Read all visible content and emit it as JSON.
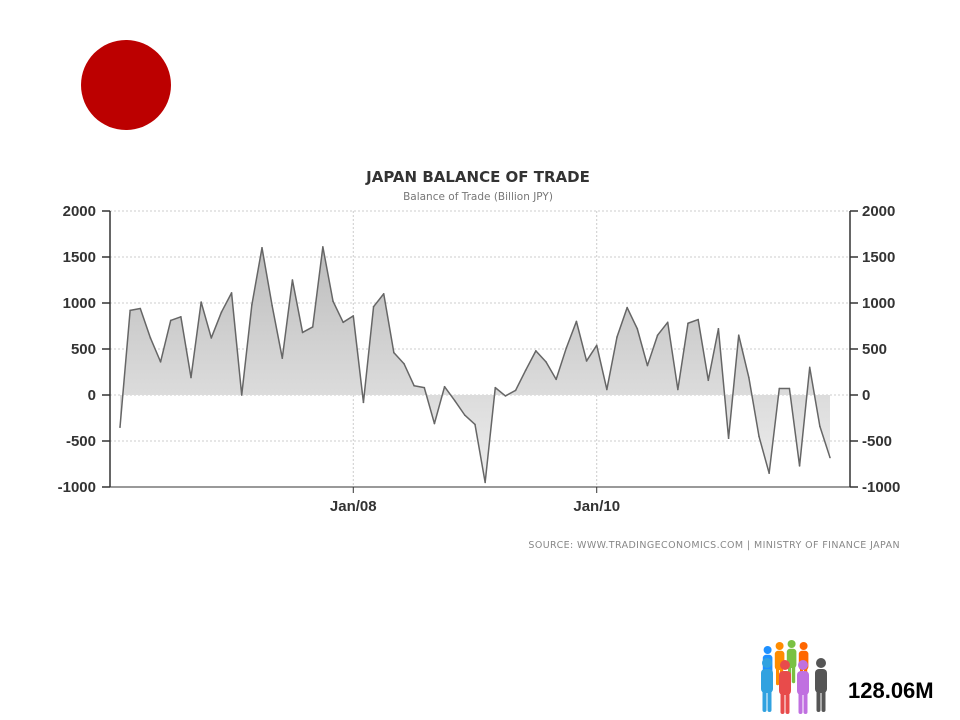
{
  "flag": {
    "color": "#bc0000"
  },
  "population": {
    "value": "128.06M",
    "icon": "people-group-icon",
    "figure_colors": [
      "#1e90ff",
      "#ff8c00",
      "#7ac142",
      "#ff6600",
      "#31a2e0",
      "#e84b4b",
      "#c070e0",
      "#555555"
    ]
  },
  "chart_data": {
    "type": "area",
    "title": "JAPAN BALANCE OF TRADE",
    "subtitle": "Balance of Trade (Billion JPY)",
    "source": "SOURCE: WWW.TRADINGECONOMICS.COM | MINISTRY OF FINANCE JAPAN",
    "ylim": [
      -1000,
      2000
    ],
    "y_ticks": [
      "2000",
      "1500",
      "1000",
      "500",
      "0",
      "-500",
      "-1000"
    ],
    "y_tick_values": [
      2000,
      1500,
      1000,
      500,
      0,
      -500,
      -1000
    ],
    "x_tick_labels": [
      "Jan/08",
      "Jan/10"
    ],
    "x_tick_index": [
      23,
      47
    ],
    "grid": true,
    "axis_right": true,
    "colors": {
      "line": "#666666",
      "fill_top": "#bdbdbd",
      "fill_bottom": "#eeeeee",
      "grid": "#cccccc"
    },
    "x_start": "2006-01",
    "x_end": "2012-01",
    "values": [
      -350,
      920,
      940,
      620,
      360,
      810,
      850,
      190,
      1010,
      620,
      900,
      1110,
      0,
      980,
      1600,
      970,
      400,
      1250,
      680,
      740,
      1610,
      1020,
      790,
      860,
      -80,
      960,
      1100,
      460,
      340,
      100,
      80,
      -310,
      90,
      -60,
      -220,
      -320,
      -950,
      80,
      -10,
      50,
      270,
      480,
      360,
      170,
      510,
      800,
      370,
      540,
      60,
      630,
      950,
      720,
      320,
      650,
      790,
      60,
      780,
      820,
      160,
      720,
      -470,
      650,
      190,
      -450,
      -850,
      70,
      70,
      -770,
      300,
      -340,
      -680
    ]
  }
}
